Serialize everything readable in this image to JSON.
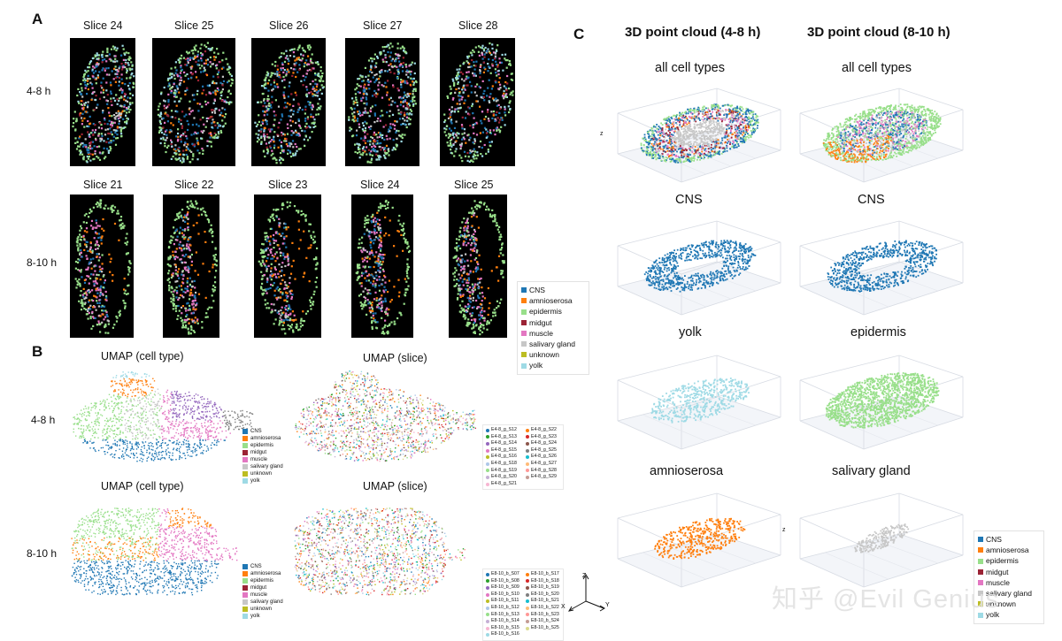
{
  "panels": {
    "a": "A",
    "b": "B",
    "c": "C"
  },
  "colors": {
    "CNS": "#1f77b4",
    "amnioserosa": "#ff7f0e",
    "epidermis": "#98df8a",
    "midgut": "#9b2335",
    "muscle": "#e377c2",
    "salivary_gland": "#c7c7c7",
    "unknown": "#bcbd22",
    "yolk": "#9edae5"
  },
  "panelA": {
    "rows": [
      {
        "label": "4-8 h",
        "slices": [
          "Slice 24",
          "Slice 25",
          "Slice 26",
          "Slice 27",
          "Slice 28"
        ]
      },
      {
        "label": "8-10 h",
        "slices": [
          "Slice 21",
          "Slice 22",
          "Slice 23",
          "Slice 24",
          "Slice 25"
        ]
      }
    ],
    "legend": [
      "CNS",
      "amnioserosa",
      "epidermis",
      "midgut",
      "muscle",
      "salivary gland",
      "unknown",
      "yolk"
    ]
  },
  "panelB": {
    "titles": [
      "UMAP (cell type)",
      "UMAP (slice)",
      "UMAP (cell type)",
      "UMAP (slice)"
    ],
    "rows": [
      "4-8 h",
      "8-10 h"
    ],
    "celltype_legend": [
      "CNS",
      "amnioserosa",
      "epidermis",
      "midgut",
      "muscle",
      "salivary gland",
      "unknown",
      "yolk"
    ],
    "slice_legend_48": [
      "E4-8_g_S12",
      "E4-8_g_S22",
      "E4-8_g_S13",
      "E4-8_g_S23",
      "E4-8_g_S14",
      "E4-8_g_S24",
      "E4-8_g_S15",
      "E4-8_g_S25",
      "E4-8_g_S16",
      "E4-8_g_S26",
      "E4-8_g_S18",
      "E4-8_g_S27",
      "E4-8_g_S19",
      "E4-8_g_S28",
      "E4-8_g_S20",
      "E4-8_g_S29",
      "E4-8_g_S21",
      ""
    ],
    "slice_legend_810": [
      "E8-10_b_S07",
      "E8-10_b_S17",
      "E8-10_b_S08",
      "E8-10_b_S18",
      "E8-10_b_S09",
      "E8-10_b_S19",
      "E8-10_b_S10",
      "E8-10_b_S20",
      "E8-10_b_S11",
      "E8-10_b_S21",
      "E8-10_b_S12",
      "E8-10_b_S22",
      "E8-10_b_S13",
      "E8-10_b_S23",
      "E8-10_b_S14",
      "E8-10_b_S24",
      "E8-10_b_S15",
      "E8-10_b_S25",
      "E8-10_b_S16",
      ""
    ],
    "slice_colors": [
      "#1f77b4",
      "#ff7f0e",
      "#2ca02c",
      "#d62728",
      "#9467bd",
      "#8c564b",
      "#e377c2",
      "#7f7f7f",
      "#bcbd22",
      "#17becf",
      "#aec7e8",
      "#ffbb78",
      "#98df8a",
      "#ff9896",
      "#c5b0d5",
      "#c49c94",
      "#f7b6d2",
      "#dbdb8d",
      "#9edae5"
    ],
    "axes": {
      "z": "Z",
      "x": "X",
      "y": "Y"
    }
  },
  "panelC": {
    "col_titles": [
      "3D point cloud (4-8 h)",
      "3D point cloud (8-10 h)"
    ],
    "cells": [
      [
        "all cell types",
        "all cell types"
      ],
      [
        "CNS",
        "CNS"
      ],
      [
        "yolk",
        "epidermis"
      ],
      [
        "amnioserosa",
        "salivary gland"
      ]
    ],
    "legend": [
      "CNS",
      "amnioserosa",
      "epidermis",
      "midgut",
      "muscle",
      "salivary gland",
      "unknown",
      "yolk"
    ],
    "z_label": "z"
  },
  "watermark": "知乎 @Evil Genius"
}
